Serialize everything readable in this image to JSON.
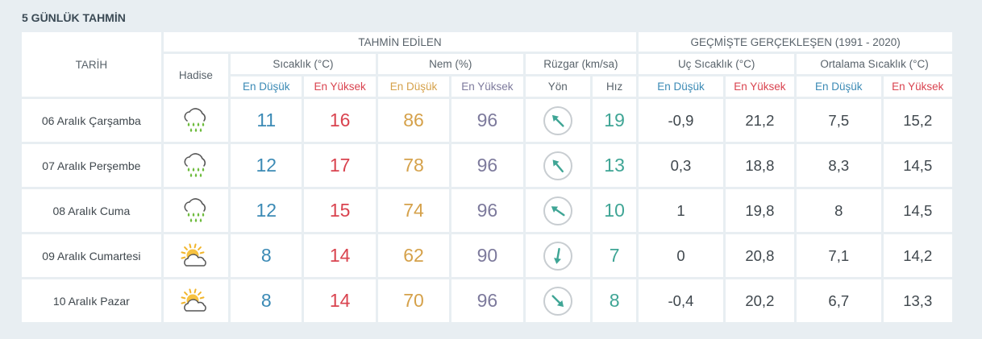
{
  "title": "5 GÜNLÜK TAHMİN",
  "header": {
    "tarih": "TARİH",
    "tahmin": "TAHMİN EDİLEN",
    "gecmis": "GEÇMİŞTE GERÇEKLEŞEN (1991 - 2020)",
    "hadise": "Hadise",
    "sicaklik": "Sıcaklık (°C)",
    "nem": "Nem (%)",
    "ruzgar": "Rüzgar (km/sa)",
    "uc_sicaklik": "Uç Sıcaklık (°C)",
    "ort_sicaklik": "Ortalama Sıcaklık (°C)",
    "en_dusuk": "En Düşük",
    "en_yuksek": "En Yüksek",
    "yon": "Yön",
    "hiz": "Hız"
  },
  "colors": {
    "low": "#3b8ab5",
    "high": "#d9434f",
    "humidity_low": "#d5a14a",
    "humidity_high": "#7d7a9c",
    "wind_speed": "#3fa595"
  },
  "rows": [
    {
      "date": "06 Aralık Çarşamba",
      "icon": "rain-icon",
      "temp_low": "11",
      "temp_high": "16",
      "hum_low": "86",
      "hum_high": "96",
      "wind_dir_deg": 315,
      "wind_speed": "19",
      "ext_low": "-0,9",
      "ext_high": "21,2",
      "avg_low": "7,5",
      "avg_high": "15,2"
    },
    {
      "date": "07 Aralık Perşembe",
      "icon": "rain-icon",
      "temp_low": "12",
      "temp_high": "17",
      "hum_low": "78",
      "hum_high": "96",
      "wind_dir_deg": 320,
      "wind_speed": "13",
      "ext_low": "0,3",
      "ext_high": "18,8",
      "avg_low": "8,3",
      "avg_high": "14,5"
    },
    {
      "date": "08 Aralık Cuma",
      "icon": "rain-icon",
      "temp_low": "12",
      "temp_high": "15",
      "hum_low": "74",
      "hum_high": "96",
      "wind_dir_deg": 305,
      "wind_speed": "10",
      "ext_low": "1",
      "ext_high": "19,8",
      "avg_low": "8",
      "avg_high": "14,5"
    },
    {
      "date": "09 Aralık Cumartesi",
      "icon": "partly-cloudy-icon",
      "temp_low": "8",
      "temp_high": "14",
      "hum_low": "62",
      "hum_high": "90",
      "wind_dir_deg": 190,
      "wind_speed": "7",
      "ext_low": "0",
      "ext_high": "20,8",
      "avg_low": "7,1",
      "avg_high": "14,2"
    },
    {
      "date": "10 Aralık Pazar",
      "icon": "partly-cloudy-icon",
      "temp_low": "8",
      "temp_high": "14",
      "hum_low": "70",
      "hum_high": "96",
      "wind_dir_deg": 135,
      "wind_speed": "8",
      "ext_low": "-0,4",
      "ext_high": "20,2",
      "avg_low": "6,7",
      "avg_high": "13,3"
    }
  ]
}
